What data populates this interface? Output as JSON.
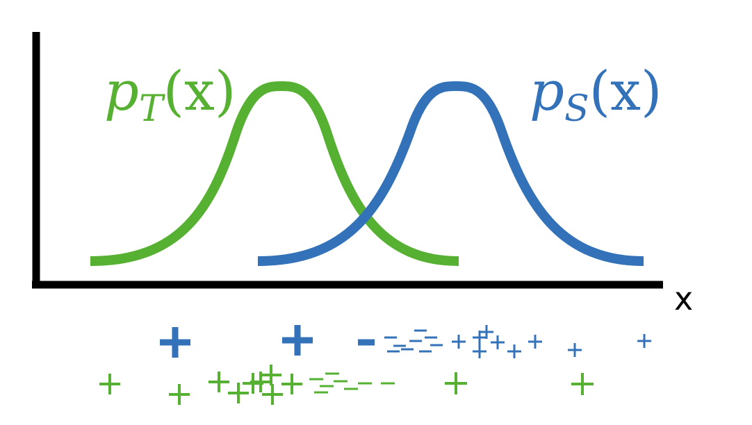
{
  "diagram": {
    "x_axis_label": "x",
    "target": {
      "label_main": "p",
      "label_sub": "T",
      "label_arg": "(x)",
      "color": "#56b031"
    },
    "source": {
      "label_main": "p",
      "label_sub": "S",
      "label_arg": "(x)",
      "color": "#3372b8"
    },
    "axis_color": "#000000"
  }
}
